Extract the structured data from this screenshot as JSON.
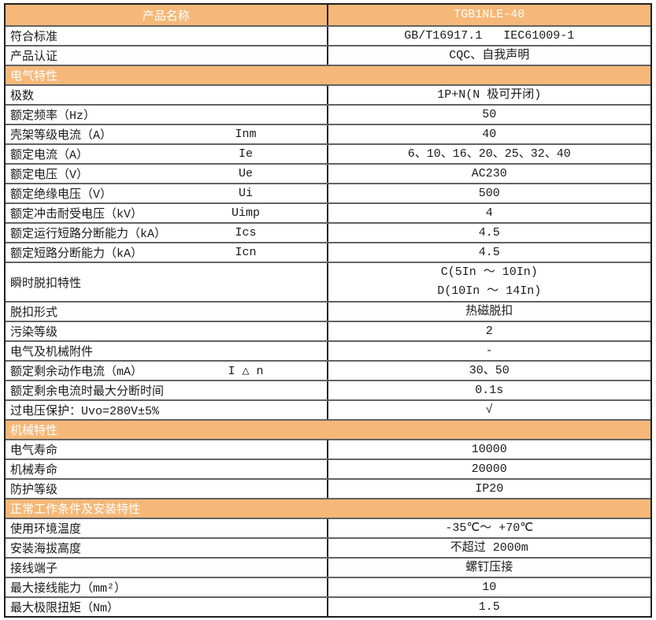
{
  "colors": {
    "accent_orange": "#F5B878",
    "header_text": "#FFFFFF",
    "body_text": "#1A1A1A",
    "border_dark": "#1F1F1F",
    "border_gray": "#636363"
  },
  "table": {
    "rows": [
      {
        "type": "product",
        "label": "产品名称",
        "value": "TGB1NLE-40"
      },
      {
        "type": "data",
        "label": "符合标准",
        "value": "GB/T16917.1   IEC61009-1"
      },
      {
        "type": "data",
        "label": "产品认证",
        "value": "CQC、自我声明"
      },
      {
        "type": "section",
        "label": "电气特性"
      },
      {
        "type": "data",
        "label": "极数",
        "value": "1P+N(N 极可开闭)"
      },
      {
        "type": "data",
        "label": "额定频率（Hz）",
        "value": "50"
      },
      {
        "type": "data",
        "label": "壳架等级电流（A）",
        "symbol": "Inm",
        "value": "40"
      },
      {
        "type": "data",
        "label": "额定电流（A）",
        "symbol": "Ie",
        "value": "6、10、16、20、25、32、40"
      },
      {
        "type": "data",
        "label": "额定电压（V）",
        "symbol": "Ue",
        "value": "AC230"
      },
      {
        "type": "data",
        "label": "额定绝缘电压（V）",
        "symbol": "Ui",
        "value": "500"
      },
      {
        "type": "data",
        "label": "额定冲击耐受电压（kV）",
        "symbol": "Uimp",
        "value": "4"
      },
      {
        "type": "data",
        "label": "额定运行短路分断能力（kA）",
        "symbol": "Ics",
        "value": "4.5"
      },
      {
        "type": "data",
        "label": "额定短路分断能力（kA）",
        "symbol": "Icn",
        "value": "4.5"
      },
      {
        "type": "data",
        "label": "瞬时脱扣特性",
        "values": [
          "C(5In ～ 10In)",
          "D(10In ～ 14In)"
        ]
      },
      {
        "type": "data",
        "label": "脱扣形式",
        "value": "热磁脱扣"
      },
      {
        "type": "data",
        "label": "污染等级",
        "value": "2"
      },
      {
        "type": "data",
        "label": "电气及机械附件",
        "value": "-"
      },
      {
        "type": "data",
        "label": "额定剩余动作电流（mA）",
        "symbol": "I △ n",
        "value": "30、50"
      },
      {
        "type": "data",
        "label": "额定剩余电流时最大分断时间",
        "value": "0.1s"
      },
      {
        "type": "data",
        "label": "过电压保护：Uvo=280V±5%",
        "value": "√"
      },
      {
        "type": "section",
        "label": "机械特性"
      },
      {
        "type": "data",
        "label": "电气寿命",
        "value": "10000"
      },
      {
        "type": "data",
        "label": "机械寿命",
        "value": "20000"
      },
      {
        "type": "data",
        "label": "防护等级",
        "value": "IP20"
      },
      {
        "type": "section",
        "label": "正常工作条件及安装特性"
      },
      {
        "type": "data",
        "label": "使用环境温度",
        "value": "-35℃～ +70℃"
      },
      {
        "type": "data",
        "label": "安装海拔高度",
        "value": "不超过 2000m"
      },
      {
        "type": "data",
        "label": "接线端子",
        "value": "螺钉压接"
      },
      {
        "type": "data",
        "label": "最大接线能力（mm²）",
        "value": "10"
      },
      {
        "type": "data",
        "label": "最大极限扭矩（Nm）",
        "value": "1.5"
      }
    ]
  }
}
